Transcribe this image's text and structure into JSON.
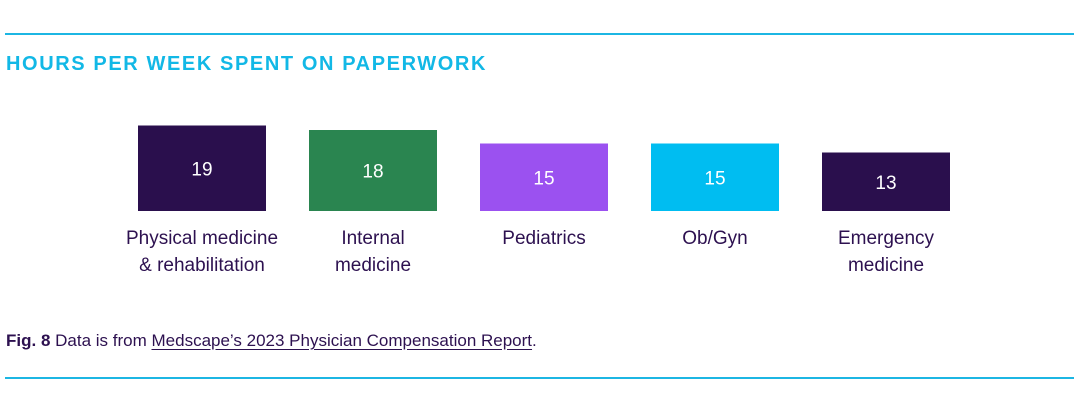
{
  "title": "HOURS PER WEEK SPENT ON PAPERWORK",
  "caption": {
    "fig_label": "Fig. 8",
    "text_before": " Data is from ",
    "link_text": "Medscape’s 2023 Physician Compensation Report",
    "text_after": "."
  },
  "colors": {
    "rule": "#1cb6e3",
    "title": "#12b8e6",
    "text": "#2d1150"
  },
  "chart_data": {
    "type": "bar",
    "categories": [
      [
        "Physical medicine",
        "& rehabilitation"
      ],
      [
        "Internal",
        "medicine"
      ],
      [
        "Pediatrics"
      ],
      [
        "Ob/Gyn"
      ],
      [
        "Emergency",
        "medicine"
      ]
    ],
    "values": [
      19,
      18,
      15,
      15,
      13
    ],
    "colors": [
      "#2a0f4d",
      "#2a8550",
      "#9b51f0",
      "#00bdf1",
      "#2a0f4d"
    ],
    "title": "HOURS PER WEEK SPENT ON PAPERWORK",
    "xlabel": "",
    "ylabel": "",
    "grid": false
  }
}
